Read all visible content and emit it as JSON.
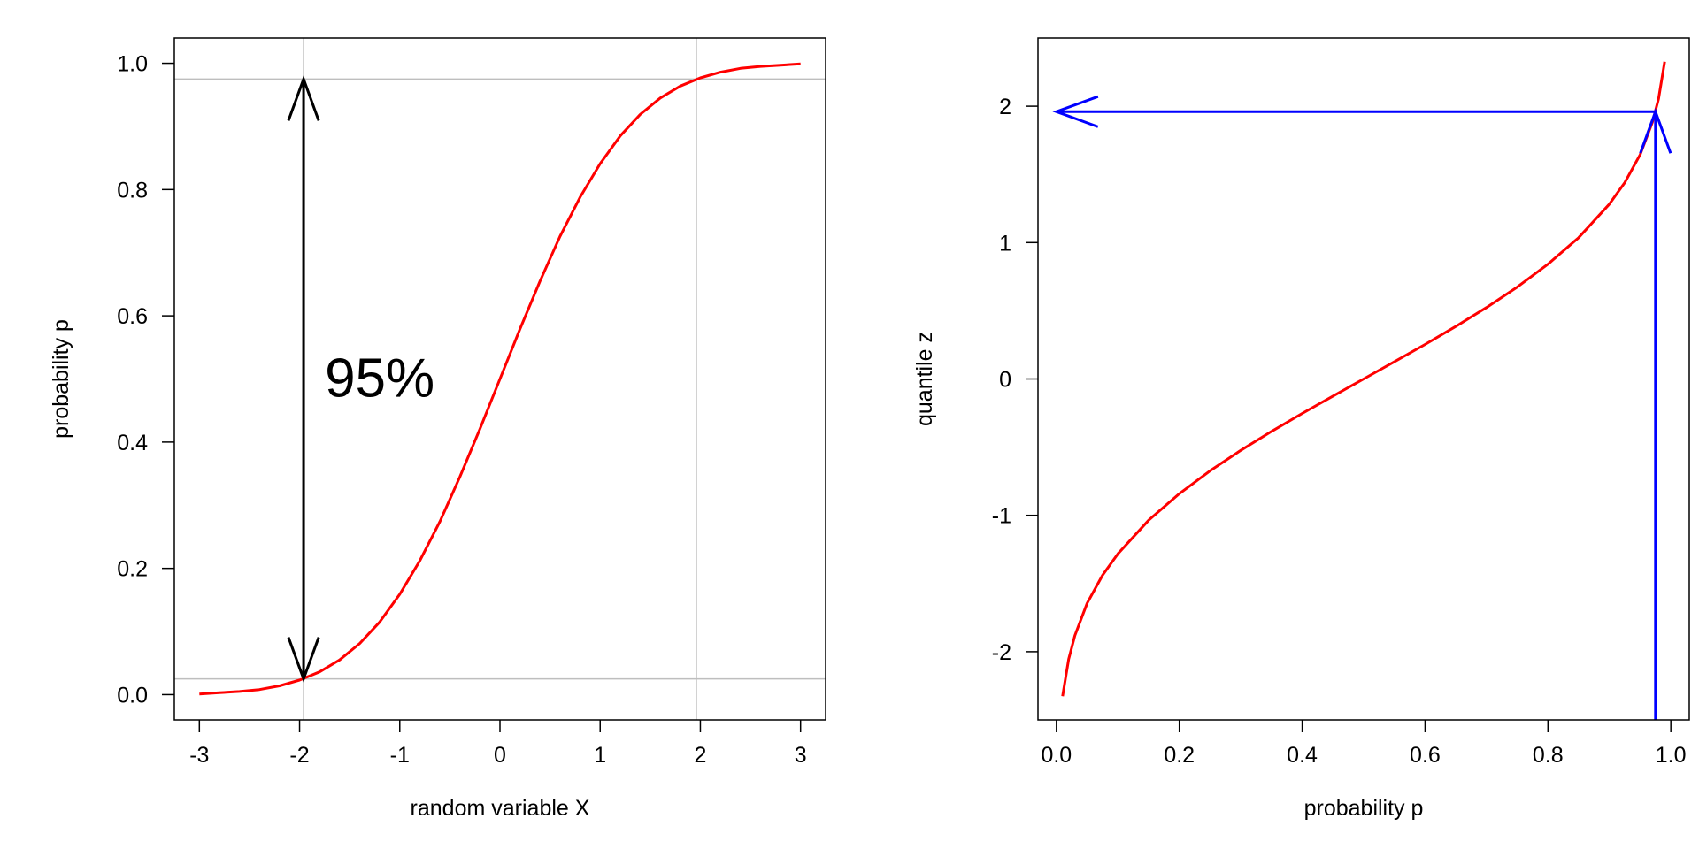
{
  "chart_data": [
    {
      "type": "line",
      "title": "",
      "xlabel": "random variable X",
      "ylabel": "probability p",
      "xlim": [
        -3.25,
        3.25
      ],
      "ylim": [
        -0.04,
        1.04
      ],
      "xticks": [
        -3,
        -2,
        -1,
        0,
        1,
        2,
        3
      ],
      "xtick_labels": [
        "-3",
        "-2",
        "-1",
        "0",
        "1",
        "2",
        "3"
      ],
      "yticks": [
        0.0,
        0.2,
        0.4,
        0.6,
        0.8,
        1.0
      ],
      "ytick_labels": [
        "0.0",
        "0.2",
        "0.4",
        "0.6",
        "0.8",
        "1.0"
      ],
      "grid": false,
      "series": [
        {
          "color": "#ff0000",
          "x": [
            -3,
            -2.8,
            -2.6,
            -2.4,
            -2.2,
            -2,
            -1.8,
            -1.6,
            -1.4,
            -1.2,
            -1,
            -0.8,
            -0.6,
            -0.4,
            -0.2,
            0,
            0.2,
            0.4,
            0.6,
            0.8,
            1,
            1.2,
            1.4,
            1.6,
            1.8,
            2,
            2.2,
            2.4,
            2.6,
            2.8,
            3
          ],
          "y": [
            0.001,
            0.003,
            0.005,
            0.008,
            0.014,
            0.023,
            0.036,
            0.055,
            0.081,
            0.115,
            0.159,
            0.212,
            0.274,
            0.345,
            0.421,
            0.5,
            0.579,
            0.655,
            0.726,
            0.788,
            0.841,
            0.885,
            0.919,
            0.945,
            0.964,
            0.977,
            0.986,
            0.992,
            0.995,
            0.997,
            0.999
          ]
        }
      ],
      "reference_lines": {
        "vertical": [
          -1.96,
          1.96
        ],
        "horizontal": [
          0.025,
          0.975
        ],
        "color": "#bebebe"
      },
      "arrows": [
        {
          "from": [
            -1.96,
            0.5
          ],
          "to": [
            -1.96,
            0.975
          ],
          "color": "#000000"
        },
        {
          "from": [
            -1.96,
            0.5
          ],
          "to": [
            -1.96,
            0.025
          ],
          "color": "#000000"
        }
      ],
      "annotations": [
        {
          "text": "95%",
          "x": -1.2,
          "y": 0.5
        }
      ]
    },
    {
      "type": "line",
      "title": "",
      "xlabel": "probability p",
      "ylabel": "quantile z",
      "xlim": [
        -0.03,
        1.03
      ],
      "ylim": [
        -2.5,
        2.5
      ],
      "xticks": [
        0.0,
        0.2,
        0.4,
        0.6,
        0.8,
        1.0
      ],
      "xtick_labels": [
        "0.0",
        "0.2",
        "0.4",
        "0.6",
        "0.8",
        "1.0"
      ],
      "yticks": [
        -2,
        -1,
        0,
        1,
        2
      ],
      "ytick_labels": [
        "-2",
        "-1",
        "0",
        "1",
        "2"
      ],
      "grid": false,
      "series": [
        {
          "color": "#ff0000",
          "x": [
            0.01,
            0.02,
            0.03,
            0.05,
            0.075,
            0.1,
            0.15,
            0.2,
            0.25,
            0.3,
            0.35,
            0.4,
            0.45,
            0.5,
            0.55,
            0.6,
            0.65,
            0.7,
            0.75,
            0.8,
            0.85,
            0.9,
            0.925,
            0.95,
            0.97,
            0.98,
            0.99
          ],
          "y": [
            -2.326,
            -2.054,
            -1.881,
            -1.645,
            -1.44,
            -1.282,
            -1.036,
            -0.842,
            -0.674,
            -0.524,
            -0.385,
            -0.253,
            -0.126,
            0,
            0.126,
            0.253,
            0.385,
            0.524,
            0.674,
            0.842,
            1.036,
            1.282,
            1.44,
            1.645,
            1.881,
            2.054,
            2.326
          ]
        }
      ],
      "arrows": [
        {
          "from": [
            0.975,
            -2.5
          ],
          "to": [
            0.975,
            1.96
          ],
          "color": "#0000ff"
        },
        {
          "from": [
            0.975,
            1.96
          ],
          "to": [
            0.0,
            1.96
          ],
          "color": "#0000ff"
        }
      ]
    }
  ]
}
